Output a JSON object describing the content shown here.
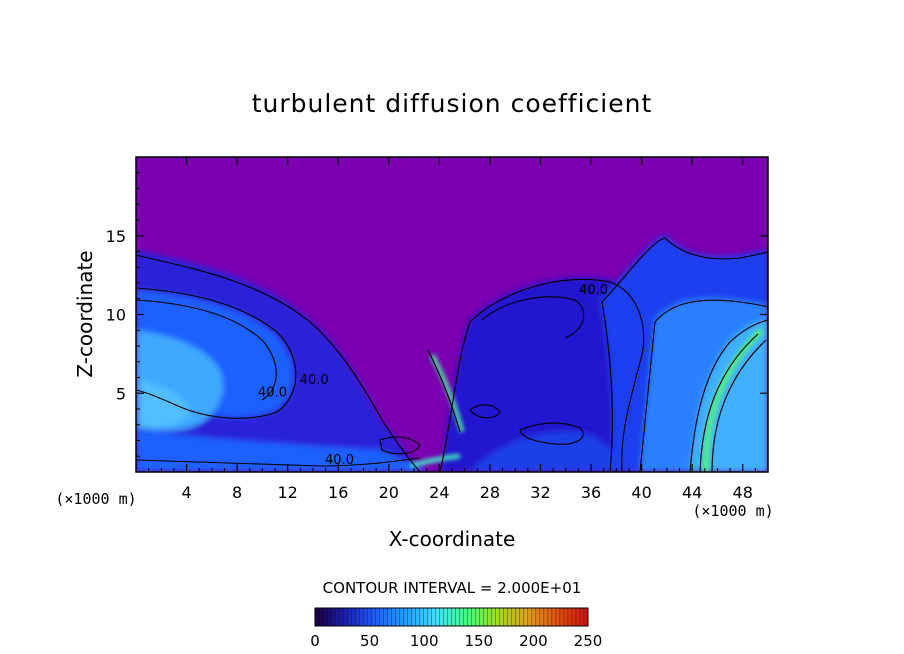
{
  "chart_data": {
    "type": "heatmap",
    "title": "turbulent diffusion coefficient",
    "xlabel": "X-coordinate",
    "ylabel": "Z-coordinate",
    "x_unit_label": "(×1000 m)",
    "y_unit_label": "(×1000 m)",
    "xlim": [
      0,
      50
    ],
    "ylim": [
      0,
      20
    ],
    "x_ticks": [
      4,
      8,
      12,
      16,
      20,
      24,
      28,
      32,
      36,
      40,
      44,
      48
    ],
    "y_ticks": [
      5,
      10,
      15
    ],
    "contour_interval_text": "CONTOUR INTERVAL = 2.000E+01",
    "contour_labels": [
      {
        "text": "40.0",
        "x": 14.1,
        "z": 5.6
      },
      {
        "text": "40.0",
        "x": 10.8,
        "z": 4.8
      },
      {
        "text": "40.0",
        "x": 36.2,
        "z": 11.3
      },
      {
        "text": "40.0",
        "x": 16.1,
        "z": 0.5
      }
    ],
    "colorbar": {
      "min": 0,
      "max": 250,
      "ticks": [
        0,
        50,
        100,
        150,
        200,
        250
      ],
      "colors": [
        "#1a0040",
        "#1c20b0",
        "#2060ff",
        "#20a0ff",
        "#40e0ff",
        "#40ff80",
        "#a0e020",
        "#e0a020",
        "#e05010",
        "#d01010"
      ]
    },
    "field_colors": {
      "background": "#7a00b0",
      "low": "#3010c8",
      "mid": "#1a50ff",
      "high": "#3aa0ff",
      "peak": "#50e890"
    }
  }
}
